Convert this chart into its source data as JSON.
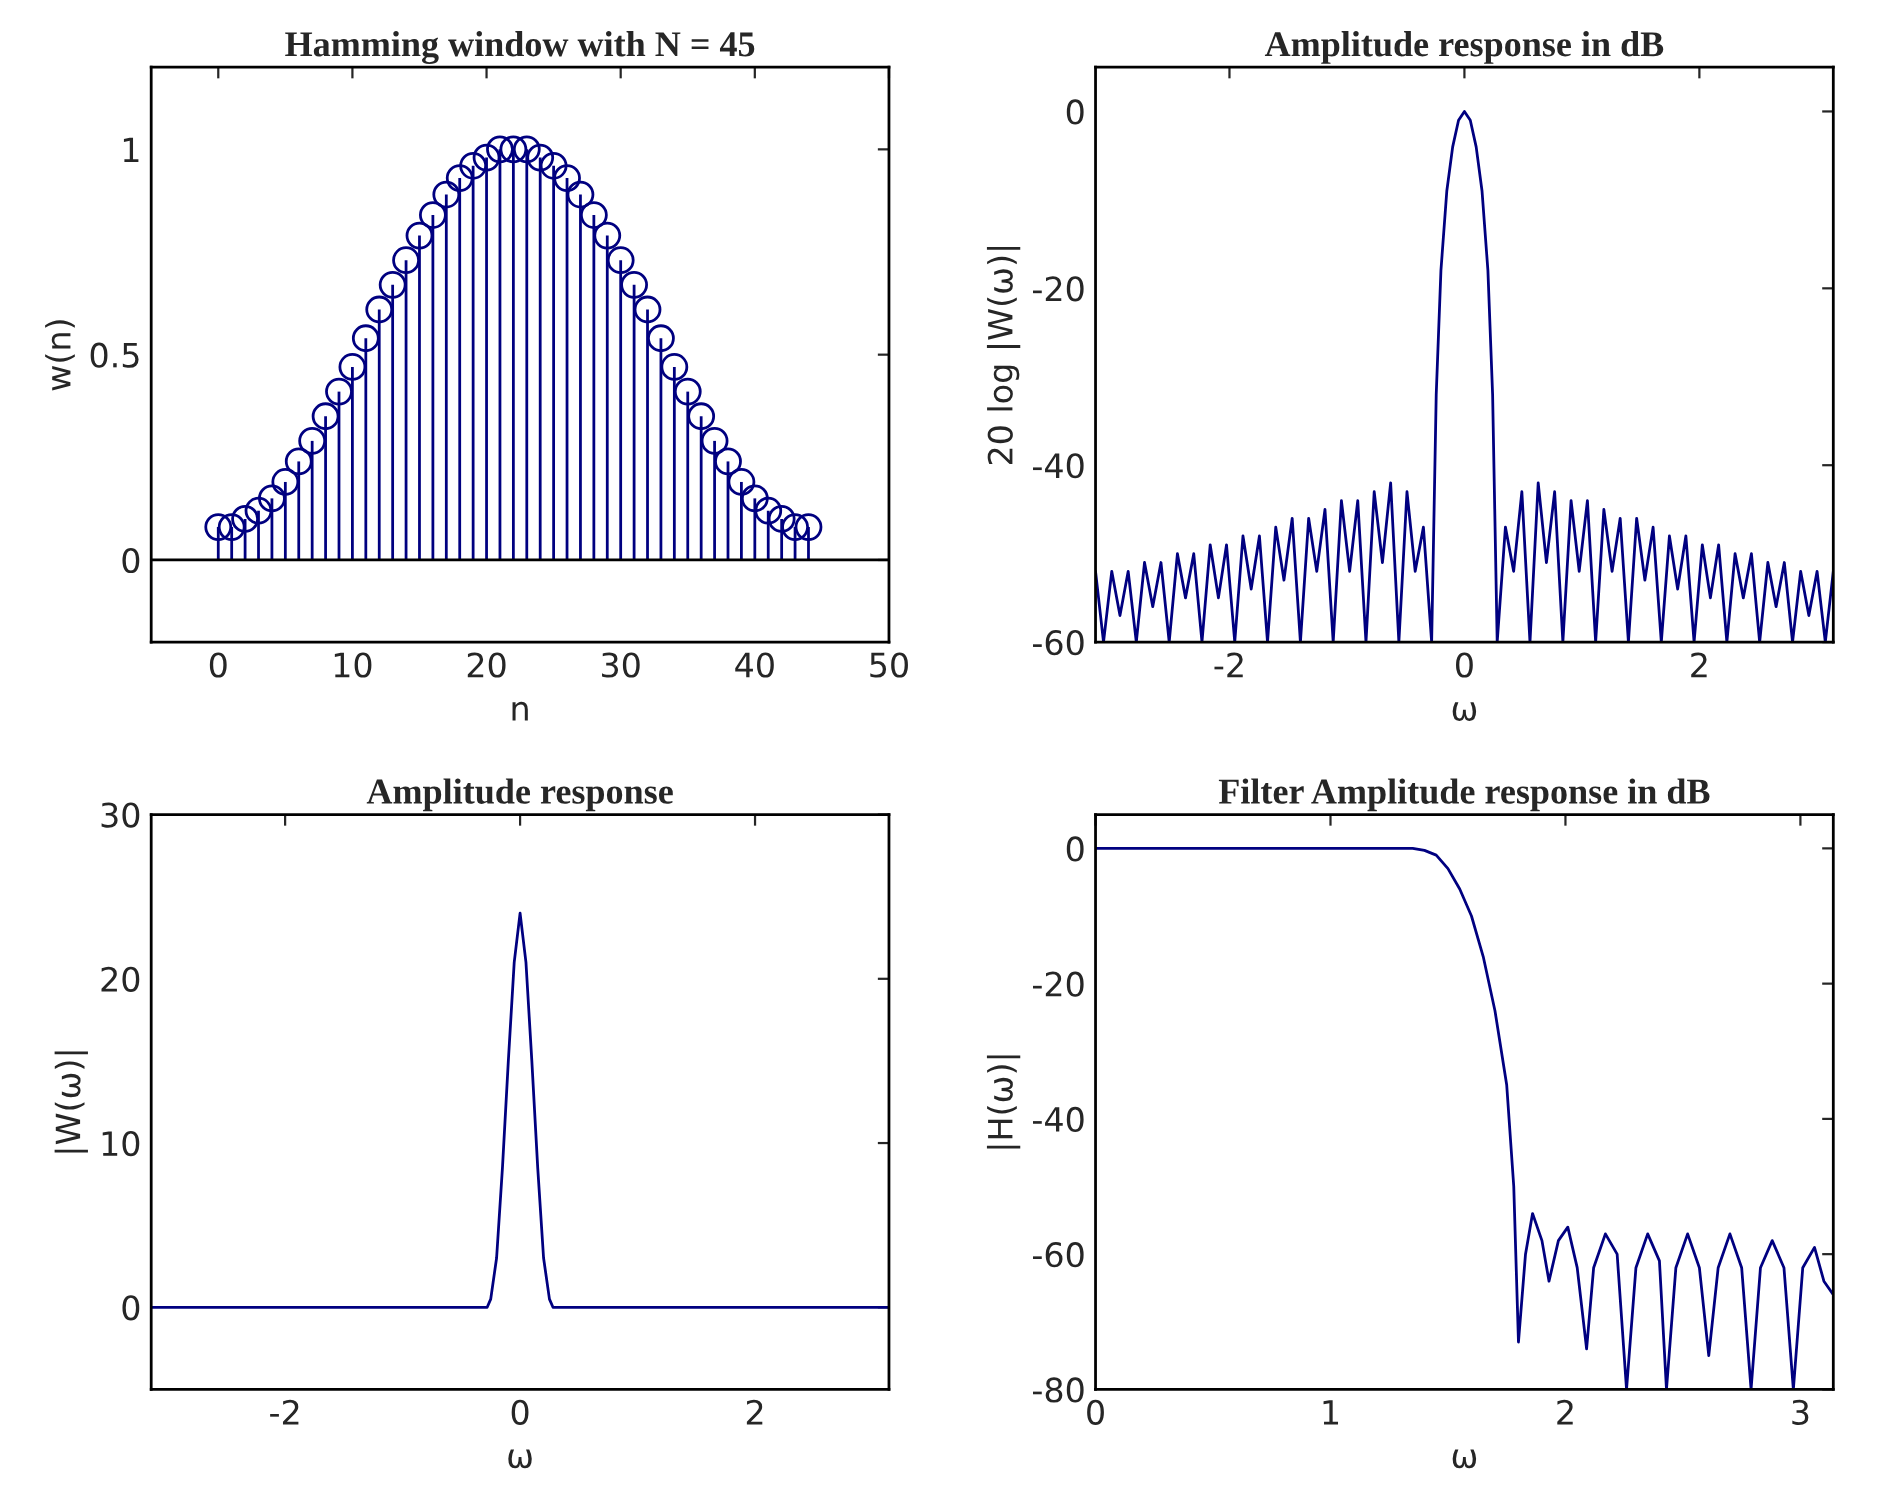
{
  "chart_data": [
    {
      "type": "lollipop",
      "title": "Hamming window with N = 45",
      "xlabel": "n",
      "ylabel": "w(n)",
      "marker": "circle",
      "grid": false,
      "legend": false,
      "x": [
        0,
        1,
        2,
        3,
        4,
        5,
        6,
        7,
        8,
        9,
        10,
        11,
        12,
        13,
        14,
        15,
        16,
        17,
        18,
        19,
        20,
        21,
        22,
        23,
        24,
        25,
        26,
        27,
        28,
        29,
        30,
        31,
        32,
        33,
        34,
        35,
        36,
        37,
        38,
        39,
        40,
        41,
        42,
        43,
        44
      ],
      "series": [
        {
          "color": "#000080",
          "values": [
            0.08,
            0.08,
            0.1,
            0.12,
            0.15,
            0.19,
            0.24,
            0.29,
            0.35,
            0.41,
            0.47,
            0.54,
            0.61,
            0.67,
            0.73,
            0.79,
            0.84,
            0.89,
            0.93,
            0.96,
            0.98,
            1.0,
            1.0,
            1.0,
            0.98,
            0.96,
            0.93,
            0.89,
            0.84,
            0.79,
            0.73,
            0.67,
            0.61,
            0.54,
            0.47,
            0.41,
            0.35,
            0.29,
            0.24,
            0.19,
            0.15,
            0.12,
            0.1,
            0.08,
            0.08
          ]
        }
      ],
      "ref_lines": [
        {
          "axis": "y",
          "value": 0,
          "color": "#000000"
        }
      ],
      "xlim": [
        -5,
        50
      ],
      "xticks": [
        0,
        10,
        20,
        30,
        40,
        50
      ],
      "ylim": [
        -0.2,
        1.2
      ],
      "yticks": [
        0,
        0.5,
        1
      ]
    },
    {
      "type": "line",
      "title": "Amplitude response in dB",
      "xlabel": "ω",
      "ylabel": "20 log |W(ω)|",
      "grid": false,
      "legend": false,
      "marker": "none",
      "line_style": "solid",
      "x": [
        -3.14,
        -3.072,
        -3.002,
        -2.932,
        -2.862,
        -2.793,
        -2.723,
        -2.653,
        -2.583,
        -2.513,
        -2.443,
        -2.374,
        -2.304,
        -2.234,
        -2.164,
        -2.094,
        -2.025,
        -1.955,
        -1.885,
        -1.815,
        -1.745,
        -1.676,
        -1.606,
        -1.536,
        -1.466,
        -1.396,
        -1.326,
        -1.257,
        -1.187,
        -1.117,
        -1.047,
        -0.977,
        -0.908,
        -0.838,
        -0.768,
        -0.698,
        -0.628,
        -0.558,
        -0.489,
        -0.419,
        -0.349,
        -0.279,
        -0.24,
        -0.2,
        -0.15,
        -0.1,
        -0.05,
        0,
        0.05,
        0.1,
        0.15,
        0.2,
        0.24,
        0.279,
        0.349,
        0.419,
        0.489,
        0.558,
        0.628,
        0.698,
        0.768,
        0.838,
        0.908,
        0.977,
        1.047,
        1.117,
        1.187,
        1.257,
        1.326,
        1.396,
        1.466,
        1.536,
        1.606,
        1.676,
        1.745,
        1.815,
        1.885,
        1.955,
        2.025,
        2.094,
        2.164,
        2.234,
        2.304,
        2.374,
        2.443,
        2.513,
        2.583,
        2.653,
        2.723,
        2.793,
        2.862,
        2.932,
        3.002,
        3.072,
        3.14
      ],
      "series": [
        {
          "color": "#000080",
          "values": [
            -52,
            -60,
            -52,
            -57,
            -52,
            -60,
            -51,
            -56,
            -51,
            -60,
            -50,
            -55,
            -50,
            -60,
            -49,
            -55,
            -49,
            -60,
            -48,
            -54,
            -48,
            -60,
            -47,
            -53,
            -46,
            -60,
            -46,
            -52,
            -45,
            -60,
            -44,
            -52,
            -44,
            -60,
            -43,
            -51,
            -42,
            -60,
            -43,
            -52,
            -47,
            -60,
            -32,
            -18,
            -9,
            -4,
            -1,
            0,
            -1,
            -4,
            -9,
            -18,
            -32,
            -60,
            -47,
            -52,
            -43,
            -60,
            -42,
            -51,
            -43,
            -60,
            -44,
            -52,
            -44,
            -60,
            -45,
            -52,
            -46,
            -60,
            -46,
            -53,
            -47,
            -60,
            -48,
            -54,
            -48,
            -60,
            -49,
            -55,
            -49,
            -60,
            -50,
            -55,
            -50,
            -60,
            -51,
            -56,
            -51,
            -60,
            -52,
            -57,
            -52,
            -60,
            -52
          ]
        }
      ],
      "xlim": [
        -3.14,
        3.14
      ],
      "xticks": [
        -2,
        0,
        2
      ],
      "ylim": [
        -60,
        5
      ],
      "yticks": [
        -60,
        -40,
        -20,
        0
      ]
    },
    {
      "type": "line",
      "title": "Amplitude response",
      "xlabel": "ω",
      "ylabel": "|W(ω)|",
      "grid": false,
      "legend": false,
      "marker": "none",
      "line_style": "solid",
      "x": [
        -3.14,
        -0.28,
        -0.25,
        -0.2,
        -0.15,
        -0.1,
        -0.05,
        0,
        0.05,
        0.1,
        0.15,
        0.2,
        0.25,
        0.28,
        3.14
      ],
      "series": [
        {
          "color": "#000080",
          "values": [
            0,
            0,
            0.5,
            3,
            8.5,
            15,
            21,
            24,
            21,
            15,
            8.5,
            3,
            0.5,
            0,
            0
          ]
        }
      ],
      "xlim": [
        -3.14,
        3.14
      ],
      "xticks": [
        -2,
        0,
        2
      ],
      "ylim": [
        -5,
        30
      ],
      "yticks": [
        0,
        10,
        20,
        30
      ]
    },
    {
      "type": "line",
      "title": "Filter Amplitude response in dB",
      "xlabel": "ω",
      "ylabel": "|H(ω)|",
      "grid": false,
      "legend": false,
      "marker": "none",
      "line_style": "solid",
      "x": [
        0,
        0.5,
        1.0,
        1.35,
        1.4,
        1.45,
        1.5,
        1.55,
        1.6,
        1.65,
        1.7,
        1.75,
        1.78,
        1.8,
        1.83,
        1.86,
        1.9,
        1.93,
        1.97,
        2.01,
        2.05,
        2.09,
        2.12,
        2.17,
        2.22,
        2.26,
        2.3,
        2.35,
        2.4,
        2.43,
        2.47,
        2.52,
        2.57,
        2.61,
        2.65,
        2.7,
        2.75,
        2.79,
        2.83,
        2.88,
        2.93,
        2.97,
        3.01,
        3.06,
        3.1,
        3.14
      ],
      "series": [
        {
          "color": "#000080",
          "values": [
            0,
            0,
            0,
            0,
            -0.3,
            -1,
            -3,
            -6,
            -10,
            -16,
            -24,
            -35,
            -50,
            -73,
            -60,
            -54,
            -58,
            -64,
            -58,
            -56,
            -62,
            -74,
            -62,
            -57,
            -60,
            -80,
            -62,
            -57,
            -61,
            -80,
            -62,
            -57,
            -62,
            -75,
            -62,
            -57,
            -62,
            -80,
            -62,
            -58,
            -62,
            -80,
            -62,
            -59,
            -64,
            -66
          ]
        }
      ],
      "xlim": [
        0,
        3.14
      ],
      "xticks": [
        0,
        1,
        2,
        3
      ],
      "ylim": [
        -80,
        5
      ],
      "yticks": [
        -80,
        -60,
        -40,
        -20,
        0
      ]
    }
  ]
}
